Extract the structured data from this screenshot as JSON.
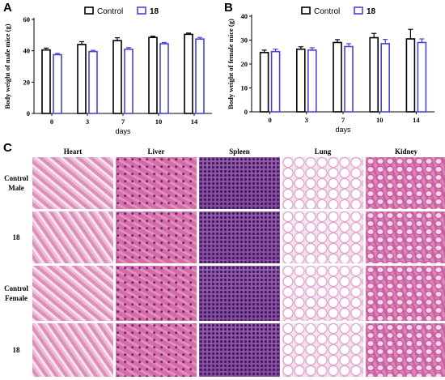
{
  "panels": {
    "a": "A",
    "b": "B",
    "c": "C"
  },
  "chart_data": [
    {
      "type": "bar",
      "panel": "A",
      "categories": [
        "0",
        "3",
        "7",
        "10",
        "14"
      ],
      "xlabel": "days",
      "ylabel": "Body weight of male mice (g)",
      "ylim": [
        0,
        60
      ],
      "yticks": [
        "0",
        "20",
        "40",
        "60"
      ],
      "series": [
        {
          "name": "Control",
          "values": [
            40.5,
            44,
            46.5,
            48.5,
            50.5
          ],
          "errors": [
            1.2,
            1.8,
            1.8,
            0.8,
            0.8
          ],
          "color": "#000000"
        },
        {
          "name": "18",
          "values": [
            37.5,
            39.5,
            41,
            44.5,
            47.5
          ],
          "errors": [
            0.8,
            0.8,
            1.0,
            0.8,
            1.0
          ],
          "color": "#4444dd"
        }
      ],
      "legend": "top"
    },
    {
      "type": "bar",
      "panel": "B",
      "categories": [
        "0",
        "3",
        "7",
        "10",
        "14"
      ],
      "xlabel": "days",
      "ylabel": "Body weight of female mice (g)",
      "ylim": [
        0,
        40
      ],
      "yticks": [
        "0",
        "10",
        "20",
        "30",
        "40"
      ],
      "series": [
        {
          "name": "Control",
          "values": [
            24.8,
            26.2,
            29,
            31,
            30.5
          ],
          "errors": [
            1.0,
            1.0,
            1.2,
            1.8,
            4.0
          ],
          "color": "#000000"
        },
        {
          "name": "18",
          "values": [
            25.2,
            25.8,
            27.3,
            28.5,
            29
          ],
          "errors": [
            1.0,
            1.0,
            1.2,
            1.8,
            1.5
          ],
          "color": "#4444dd"
        }
      ],
      "legend": "top"
    }
  ],
  "histology": {
    "columns": [
      "Heart",
      "Liver",
      "Spleen",
      "Lung",
      "Kidney"
    ],
    "rows": [
      "Control\nMale",
      "18",
      "Control\nFemale",
      "18"
    ],
    "tissue_colors": {
      "Heart": "#e8a7c8",
      "Liver": "#d66aa8",
      "Spleen": "#7a3a8e",
      "Lung": "#f1dcea",
      "Kidney": "#d67bb4"
    }
  }
}
